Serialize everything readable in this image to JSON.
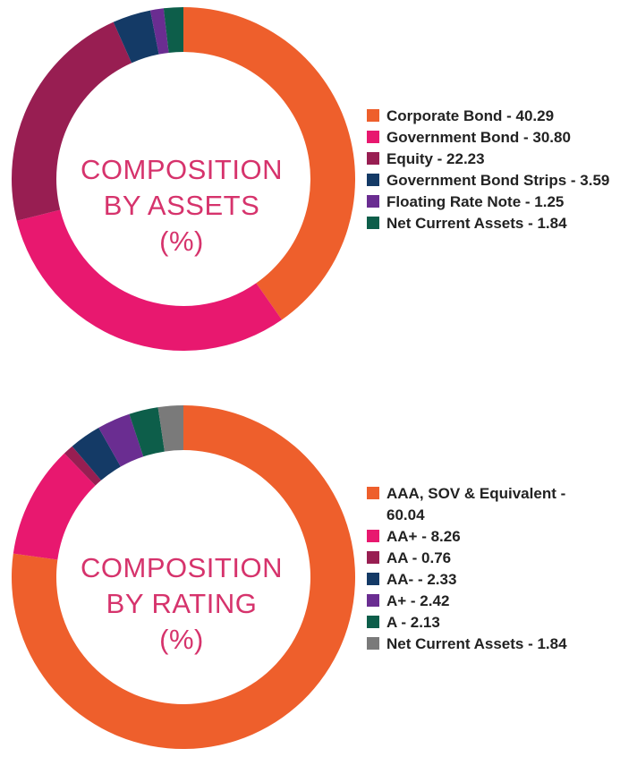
{
  "chart_data": [
    {
      "type": "pie",
      "title_lines": [
        "COMPOSITION",
        "BY ASSETS",
        "(%)"
      ],
      "slices": [
        {
          "label": "Corporate Bond",
          "value": 40.29,
          "display": "Corporate Bond - 40.29",
          "color": "#ee5f2c"
        },
        {
          "label": "Government Bond",
          "value": 30.8,
          "display": "Government Bond - 30.80",
          "color": "#e8186f"
        },
        {
          "label": "Equity",
          "value": 22.23,
          "display": "Equity - 22.23",
          "color": "#981e52"
        },
        {
          "label": "Government Bond Strips",
          "value": 3.59,
          "display": "Government Bond Strips - 3.59",
          "color": "#143a66"
        },
        {
          "label": "Floating Rate Note",
          "value": 1.25,
          "display": "Floating Rate Note - 1.25",
          "color": "#6a2d91"
        },
        {
          "label": "Net Current Assets",
          "value": 1.84,
          "display": "Net Current Assets - 1.84",
          "color": "#0d5e4a"
        }
      ],
      "legend_position": "right"
    },
    {
      "type": "pie",
      "title_lines": [
        "COMPOSITION",
        "BY RATING",
        "(%)"
      ],
      "slices": [
        {
          "label": "AAA, SOV & Equivalent",
          "value": 60.04,
          "display": "AAA, SOV & Equivalent - 60.04",
          "color": "#ee5f2c"
        },
        {
          "label": "AA+",
          "value": 8.26,
          "display": "AA+ - 8.26",
          "color": "#e8186f"
        },
        {
          "label": "AA",
          "value": 0.76,
          "display": "AA - 0.76",
          "color": "#981e52"
        },
        {
          "label": "AA-",
          "value": 2.33,
          "display": "AA- - 2.33",
          "color": "#143a66"
        },
        {
          "label": "A+",
          "value": 2.42,
          "display": "A+ - 2.42",
          "color": "#6a2d91"
        },
        {
          "label": "A",
          "value": 2.13,
          "display": "A - 2.13",
          "color": "#0d5e4a"
        },
        {
          "label": "Net Current Assets",
          "value": 1.84,
          "display": "Net Current Assets - 1.84",
          "color": "#7a7a7a"
        }
      ],
      "legend_position": "right"
    }
  ]
}
